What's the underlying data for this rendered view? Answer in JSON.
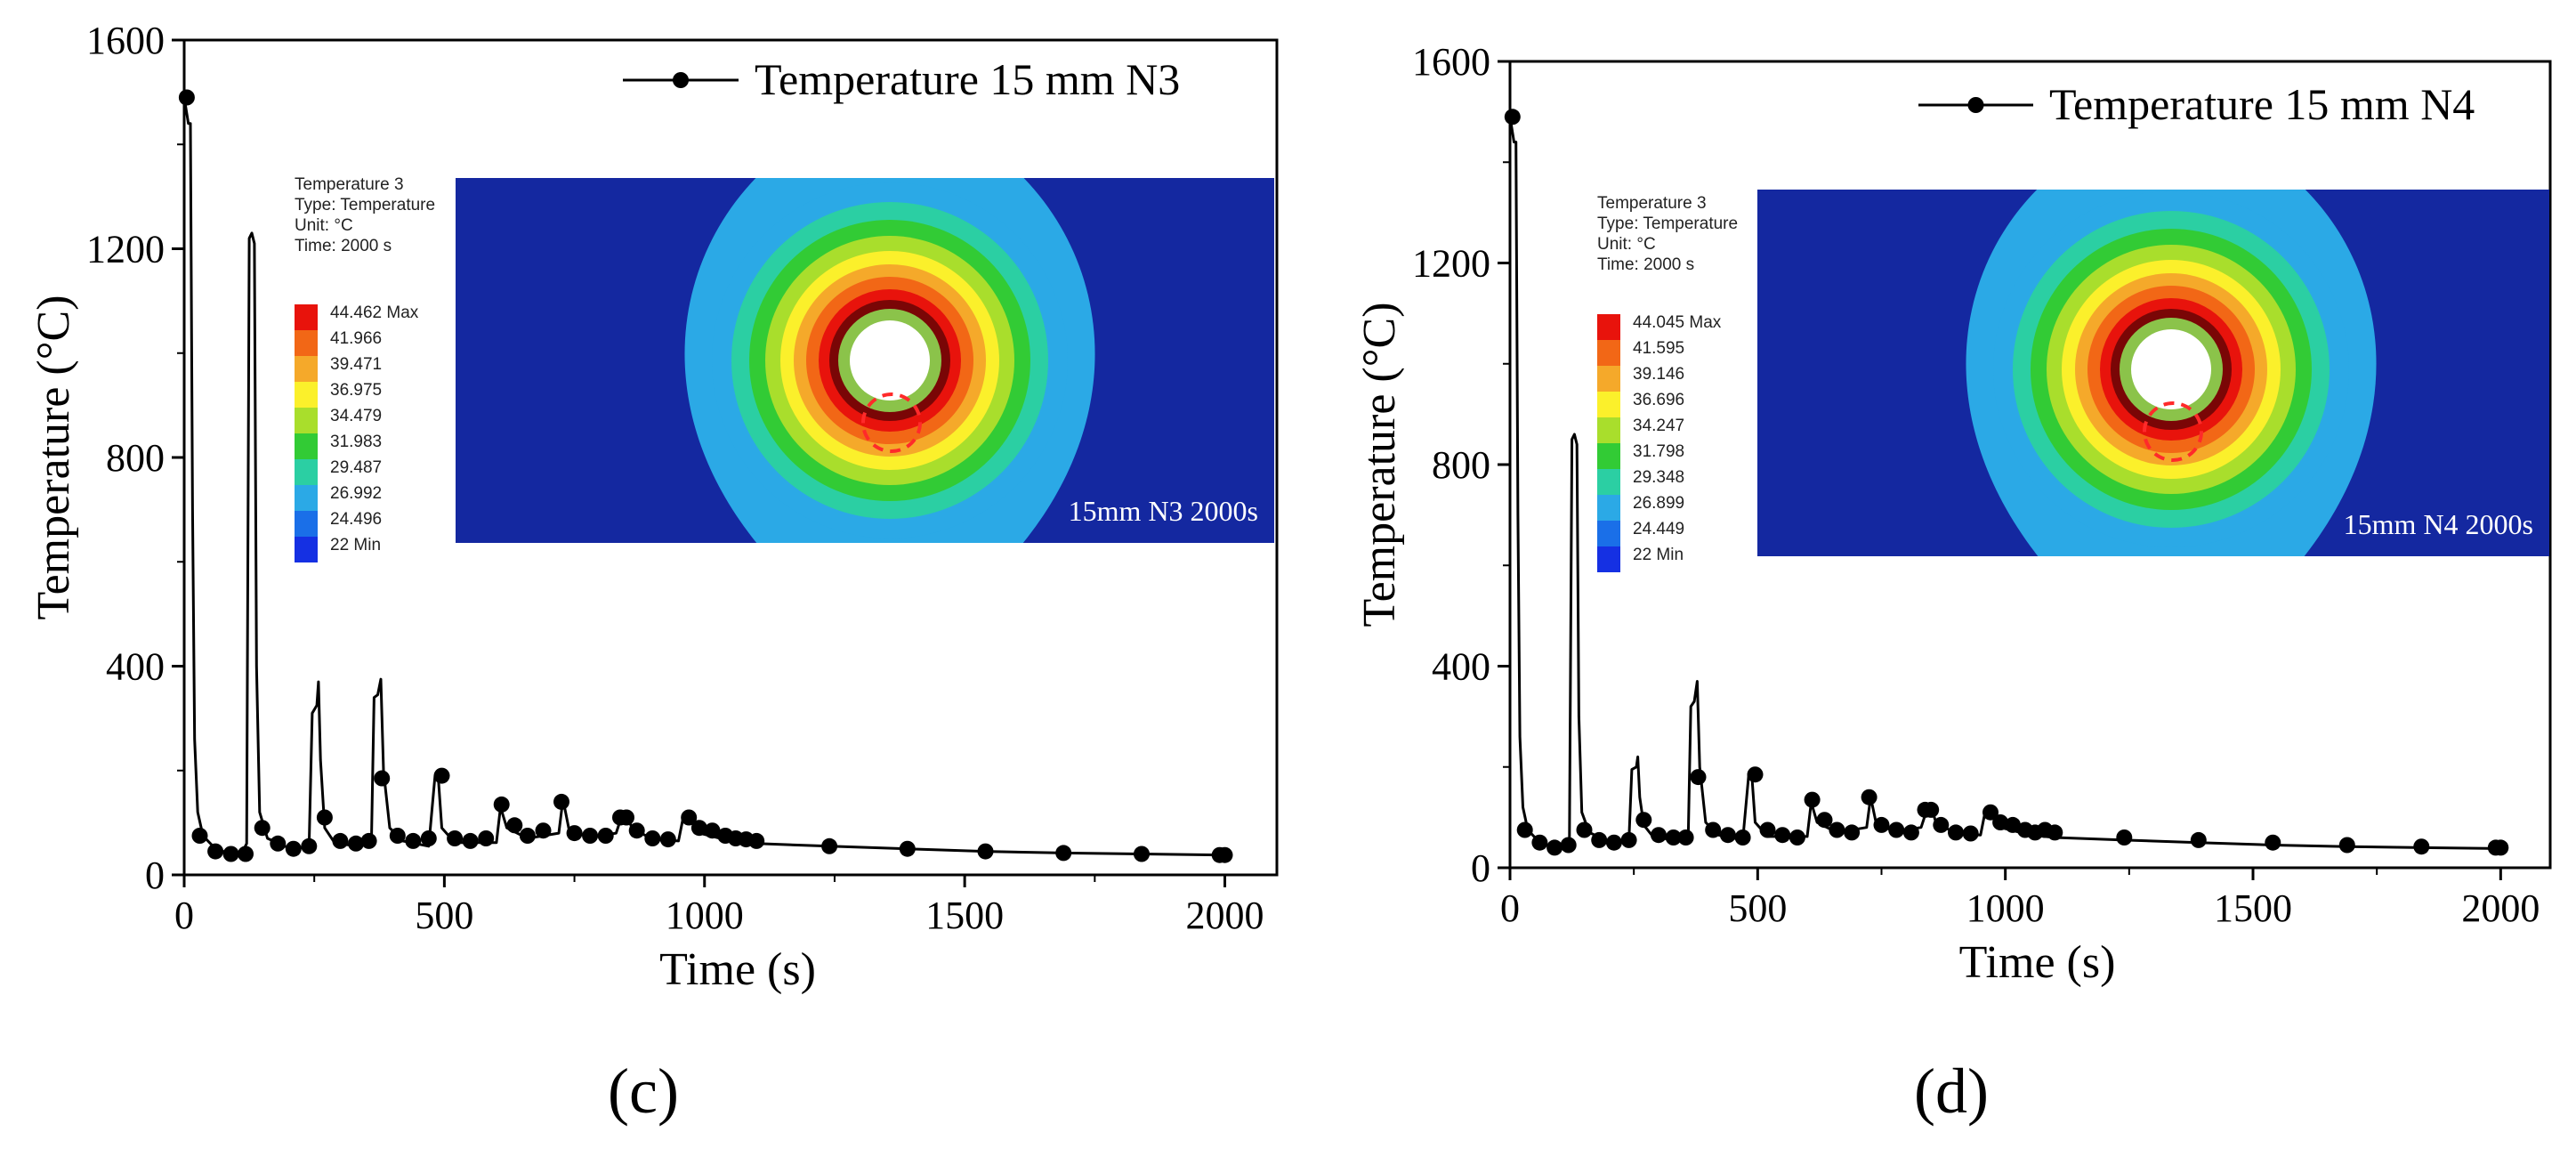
{
  "colors": {
    "line": "#000000",
    "background": "#ffffff",
    "inset_background": "#1428a0",
    "ring_max": "#7a0606",
    "highlight": "#ff2a2a"
  },
  "chart_data": [
    {
      "type": "line",
      "panel_label": "(c)",
      "xlabel": "Time (s)",
      "ylabel": "Temperature (°C)",
      "xlim": [
        0,
        2100
      ],
      "ylim": [
        0,
        1600
      ],
      "xticks": [
        0,
        500,
        1000,
        1500,
        2000
      ],
      "yticks": [
        0,
        400,
        800,
        1200,
        1600
      ],
      "legend": "top-right",
      "series": [
        {
          "name": "Temperature 15 mm N3",
          "line": [
            [
              0,
              1490
            ],
            [
              8,
              1440
            ],
            [
              12,
              1440
            ],
            [
              16,
              700
            ],
            [
              20,
              260
            ],
            [
              26,
              120
            ],
            [
              36,
              75
            ],
            [
              60,
              50
            ],
            [
              90,
              40
            ],
            [
              110,
              40
            ],
            [
              120,
              60
            ],
            [
              125,
              1220
            ],
            [
              130,
              1230
            ],
            [
              135,
              1210
            ],
            [
              139,
              400
            ],
            [
              145,
              120
            ],
            [
              160,
              70
            ],
            [
              200,
              52
            ],
            [
              240,
              52
            ],
            [
              246,
              310
            ],
            [
              255,
              325
            ],
            [
              258,
              370
            ],
            [
              262,
              220
            ],
            [
              270,
              90
            ],
            [
              290,
              60
            ],
            [
              340,
              55
            ],
            [
              360,
              70
            ],
            [
              365,
              340
            ],
            [
              372,
              345
            ],
            [
              378,
              375
            ],
            [
              383,
              200
            ],
            [
              395,
              90
            ],
            [
              420,
              65
            ],
            [
              470,
              55
            ],
            [
              482,
              190
            ],
            [
              488,
              190
            ],
            [
              495,
              90
            ],
            [
              520,
              62
            ],
            [
              600,
              62
            ],
            [
              608,
              130
            ],
            [
              620,
              90
            ],
            [
              660,
              70
            ],
            [
              720,
              80
            ],
            [
              728,
              145
            ],
            [
              740,
              85
            ],
            [
              780,
              72
            ],
            [
              830,
              80
            ],
            [
              840,
              110
            ],
            [
              852,
              115
            ],
            [
              860,
              90
            ],
            [
              900,
              68
            ],
            [
              950,
              65
            ],
            [
              960,
              115
            ],
            [
              978,
              100
            ],
            [
              990,
              80
            ],
            [
              1050,
              65
            ],
            [
              1100,
              60
            ],
            [
              1240,
              55
            ],
            [
              1390,
              50
            ],
            [
              1540,
              45
            ],
            [
              1690,
              42
            ],
            [
              1840,
              40
            ],
            [
              2000,
              38
            ]
          ],
          "markers": [
            [
              5,
              1490
            ],
            [
              30,
              75
            ],
            [
              60,
              45
            ],
            [
              90,
              40
            ],
            [
              118,
              40
            ],
            [
              150,
              90
            ],
            [
              180,
              60
            ],
            [
              210,
              50
            ],
            [
              240,
              55
            ],
            [
              270,
              110
            ],
            [
              300,
              65
            ],
            [
              330,
              60
            ],
            [
              355,
              65
            ],
            [
              380,
              185
            ],
            [
              410,
              75
            ],
            [
              440,
              65
            ],
            [
              470,
              70
            ],
            [
              495,
              190
            ],
            [
              520,
              70
            ],
            [
              550,
              65
            ],
            [
              580,
              70
            ],
            [
              610,
              135
            ],
            [
              635,
              95
            ],
            [
              660,
              75
            ],
            [
              690,
              85
            ],
            [
              725,
              140
            ],
            [
              750,
              80
            ],
            [
              780,
              75
            ],
            [
              810,
              75
            ],
            [
              838,
              110
            ],
            [
              850,
              110
            ],
            [
              870,
              85
            ],
            [
              900,
              70
            ],
            [
              930,
              68
            ],
            [
              970,
              110
            ],
            [
              990,
              90
            ],
            [
              1015,
              85
            ],
            [
              1040,
              75
            ],
            [
              1060,
              70
            ],
            [
              1080,
              68
            ],
            [
              1100,
              65
            ],
            [
              1240,
              55
            ],
            [
              1390,
              50
            ],
            [
              1540,
              45
            ],
            [
              1690,
              42
            ],
            [
              1840,
              40
            ],
            [
              1990,
              38
            ],
            [
              2000,
              38
            ]
          ]
        }
      ],
      "inset": {
        "header": [
          "Temperature 3",
          "Type: Temperature",
          "Unit: °C",
          "Time: 2000 s"
        ],
        "legend_values": [
          "44.462 Max",
          "41.966",
          "39.471",
          "36.975",
          "34.479",
          "31.983",
          "29.487",
          "26.992",
          "24.496",
          "22 Min"
        ],
        "legend_colors": [
          "#e8130c",
          "#f26716",
          "#f5a92a",
          "#fbf02b",
          "#a9de2c",
          "#32cb35",
          "#2bcfa3",
          "#2ba9e6",
          "#1a6fe8",
          "#1530e3"
        ],
        "caption": "15mm N3 2000s"
      }
    },
    {
      "type": "line",
      "panel_label": "(d)",
      "xlabel": "Time (s)",
      "ylabel": "Temperature (°C)",
      "xlim": [
        0,
        2100
      ],
      "ylim": [
        0,
        1600
      ],
      "xticks": [
        0,
        500,
        1000,
        1500,
        2000
      ],
      "yticks": [
        0,
        400,
        800,
        1200,
        1600
      ],
      "legend": "top-right",
      "series": [
        {
          "name": "Temperature 15 mm N4",
          "line": [
            [
              0,
              1490
            ],
            [
              8,
              1440
            ],
            [
              12,
              1440
            ],
            [
              16,
              700
            ],
            [
              20,
              260
            ],
            [
              26,
              120
            ],
            [
              36,
              75
            ],
            [
              60,
              50
            ],
            [
              90,
              40
            ],
            [
              110,
              40
            ],
            [
              120,
              60
            ],
            [
              125,
              850
            ],
            [
              130,
              860
            ],
            [
              135,
              840
            ],
            [
              139,
              300
            ],
            [
              145,
              110
            ],
            [
              160,
              70
            ],
            [
              200,
              52
            ],
            [
              240,
              52
            ],
            [
              246,
              195
            ],
            [
              255,
              200
            ],
            [
              258,
              220
            ],
            [
              262,
              140
            ],
            [
              270,
              85
            ],
            [
              290,
              60
            ],
            [
              340,
              55
            ],
            [
              360,
              70
            ],
            [
              365,
              320
            ],
            [
              372,
              330
            ],
            [
              378,
              370
            ],
            [
              383,
              200
            ],
            [
              395,
              90
            ],
            [
              420,
              65
            ],
            [
              470,
              55
            ],
            [
              482,
              185
            ],
            [
              488,
              185
            ],
            [
              495,
              90
            ],
            [
              520,
              62
            ],
            [
              600,
              62
            ],
            [
              608,
              130
            ],
            [
              620,
              90
            ],
            [
              660,
              70
            ],
            [
              720,
              80
            ],
            [
              728,
              140
            ],
            [
              740,
              85
            ],
            [
              780,
              72
            ],
            [
              830,
              80
            ],
            [
              840,
              110
            ],
            [
              852,
              115
            ],
            [
              860,
              90
            ],
            [
              900,
              68
            ],
            [
              950,
              65
            ],
            [
              960,
              115
            ],
            [
              978,
              100
            ],
            [
              990,
              80
            ],
            [
              1050,
              65
            ],
            [
              1100,
              60
            ],
            [
              1240,
              55
            ],
            [
              1390,
              50
            ],
            [
              1540,
              45
            ],
            [
              1690,
              42
            ],
            [
              1840,
              40
            ],
            [
              2000,
              38
            ]
          ],
          "markers": [
            [
              5,
              1490
            ],
            [
              30,
              75
            ],
            [
              60,
              50
            ],
            [
              90,
              40
            ],
            [
              118,
              45
            ],
            [
              150,
              75
            ],
            [
              180,
              55
            ],
            [
              210,
              50
            ],
            [
              240,
              55
            ],
            [
              270,
              95
            ],
            [
              300,
              65
            ],
            [
              330,
              60
            ],
            [
              355,
              60
            ],
            [
              380,
              180
            ],
            [
              410,
              75
            ],
            [
              440,
              65
            ],
            [
              470,
              60
            ],
            [
              495,
              185
            ],
            [
              520,
              75
            ],
            [
              550,
              65
            ],
            [
              580,
              60
            ],
            [
              610,
              135
            ],
            [
              635,
              95
            ],
            [
              660,
              75
            ],
            [
              690,
              70
            ],
            [
              725,
              140
            ],
            [
              750,
              85
            ],
            [
              780,
              75
            ],
            [
              810,
              70
            ],
            [
              838,
              115
            ],
            [
              850,
              115
            ],
            [
              870,
              85
            ],
            [
              900,
              70
            ],
            [
              930,
              68
            ],
            [
              970,
              110
            ],
            [
              990,
              90
            ],
            [
              1015,
              85
            ],
            [
              1040,
              75
            ],
            [
              1060,
              70
            ],
            [
              1080,
              75
            ],
            [
              1100,
              70
            ],
            [
              1240,
              60
            ],
            [
              1390,
              55
            ],
            [
              1540,
              50
            ],
            [
              1690,
              45
            ],
            [
              1840,
              42
            ],
            [
              1990,
              40
            ],
            [
              2000,
              40
            ]
          ]
        }
      ],
      "inset": {
        "header": [
          "Temperature 3",
          "Type: Temperature",
          "Unit: °C",
          "Time: 2000 s"
        ],
        "legend_values": [
          "44.045 Max",
          "41.595",
          "39.146",
          "36.696",
          "34.247",
          "31.798",
          "29.348",
          "26.899",
          "24.449",
          "22 Min"
        ],
        "legend_colors": [
          "#e8130c",
          "#f26716",
          "#f5a92a",
          "#fbf02b",
          "#a9de2c",
          "#32cb35",
          "#2bcfa3",
          "#2ba9e6",
          "#1a6fe8",
          "#1530e3"
        ],
        "caption": "15mm N4 2000s"
      }
    }
  ]
}
